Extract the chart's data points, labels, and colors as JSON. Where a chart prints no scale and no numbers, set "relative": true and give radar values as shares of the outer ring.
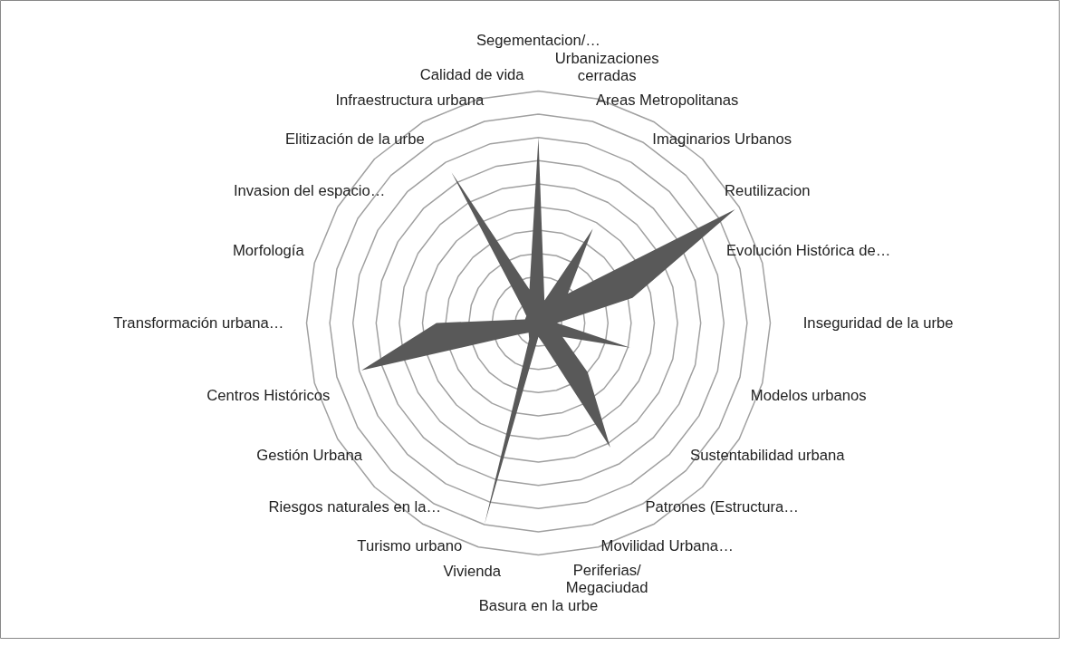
{
  "chart_data": {
    "type": "radar",
    "relative": true,
    "grid": true,
    "categories": [
      "Segementacion/…",
      "Urbanizaciones cerradas",
      "Areas Metropolitanas",
      "Imaginarios Urbanos",
      "Reutilizacion",
      "Evolución Histórica de…",
      "Inseguridad de la urbe",
      "Modelos urbanos",
      "Sustentabilidad urbana",
      "Patrones (Estructura…",
      "Movilidad Urbana…",
      "Periferias/ Megaciudad",
      "Basura en la urbe",
      "Vivienda",
      "Turismo urbano",
      "Riesgos naturales en la…",
      "Gestión Urbana",
      "Centros Históricos",
      "Transformación urbana…",
      "Morfología",
      "Invasion del espacio…",
      "Elitización de la urbe",
      "Infraestructura urbana",
      "Calidad de vida"
    ],
    "series": [
      {
        "color": "#595959",
        "values": [
          0.8,
          0.1,
          0.47,
          0.18,
          0.98,
          0.42,
          0.08,
          0.41,
          0.12,
          0.3,
          0.62,
          0.1,
          0.06,
          0.9,
          0.08,
          0.06,
          0.1,
          0.79,
          0.44,
          0.06,
          0.06,
          0.1,
          0.75,
          0.15
        ]
      }
    ]
  }
}
